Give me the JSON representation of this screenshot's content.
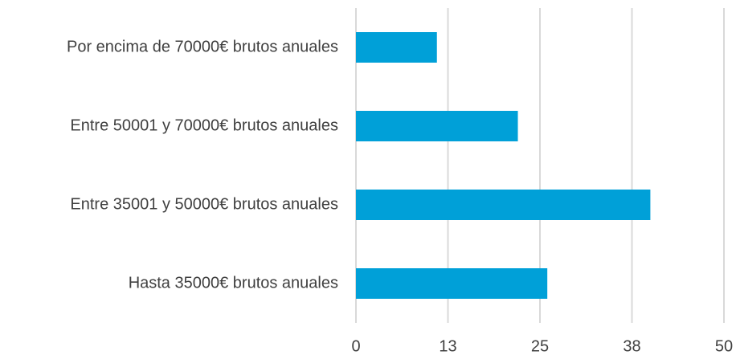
{
  "chart_data": {
    "type": "bar",
    "orientation": "horizontal",
    "categories": [
      "Por encima de 70000€ brutos anuales",
      "Entre 50001 y 70000€ brutos anuales",
      "Entre 35001 y 50000€ brutos anuales",
      "Hasta 35000€ brutos anuales"
    ],
    "values": [
      11,
      22,
      40,
      26
    ],
    "color": "#00a0d8",
    "xlim": [
      0,
      50
    ],
    "xticks": [
      0,
      {
        "value": 12.5,
        "label": "13"
      },
      25,
      {
        "value": 37.5,
        "label": "38"
      },
      50
    ],
    "grid": true
  }
}
